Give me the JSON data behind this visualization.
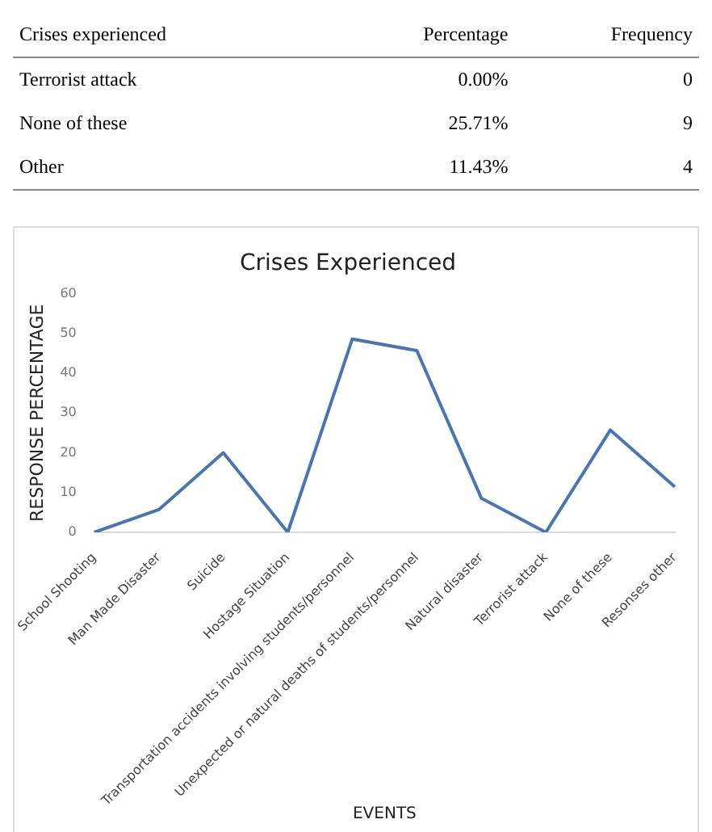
{
  "chart_data": {
    "type": "line",
    "title": "Crises Experienced",
    "xlabel": "EVENTS",
    "ylabel": "RESPONSE PERCENTAGE",
    "categories": [
      "School Shooting",
      "Man Made Disaster",
      "Suicide",
      "Hostage Situation",
      "Transportation accidents involving students/personnel",
      "Unexpected or natural deaths of students/personnel",
      "Natural disaster",
      "Terrorist attack",
      "None of these",
      "Resonses other"
    ],
    "series": [
      {
        "color": "#4a76b0",
        "values": [
          0,
          5.7,
          20,
          0,
          48.6,
          45.7,
          8.6,
          0,
          25.71,
          11.43
        ]
      }
    ],
    "ylim": [
      0,
      60
    ],
    "yticks": [
      0,
      10,
      20,
      30,
      40,
      50,
      60
    ],
    "grid": false,
    "legend": false,
    "marker": "none",
    "line_style": "solid",
    "annotations": [
      "Crises experienced",
      "Percentage",
      "Frequency",
      "Terrorist attack",
      "0.00%",
      "0",
      "None of these",
      "25.71%",
      "9",
      "Other",
      "11.43%",
      "4"
    ]
  }
}
